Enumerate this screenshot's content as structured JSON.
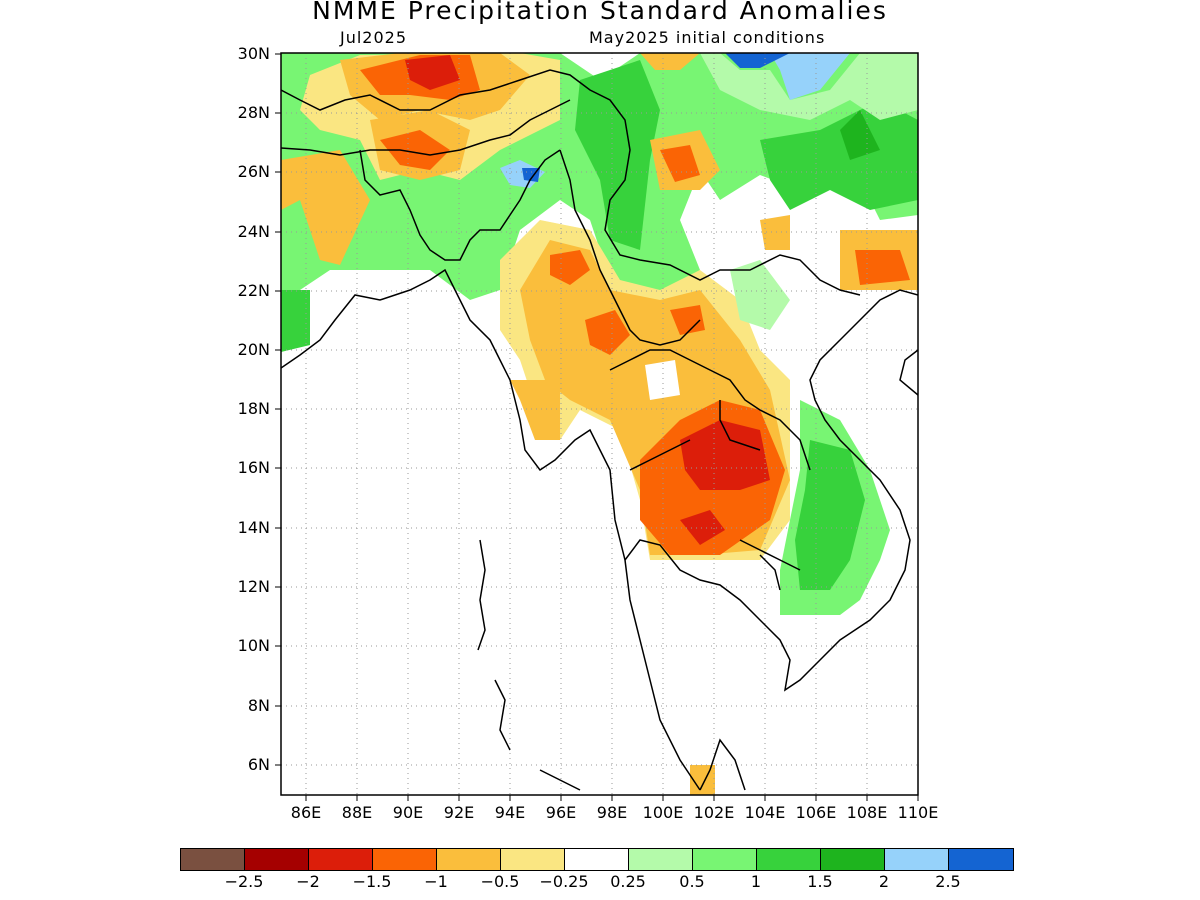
{
  "header": {
    "title": "NMME Precipitation Standard Anomalies",
    "month": "Jul2025",
    "initial": "May2025 initial conditions"
  },
  "axes": {
    "lat_labels": [
      "30N",
      "28N",
      "26N",
      "24N",
      "22N",
      "20N",
      "18N",
      "16N",
      "14N",
      "12N",
      "10N",
      "8N",
      "6N"
    ],
    "lon_labels": [
      "86E",
      "88E",
      "90E",
      "92E",
      "94E",
      "96E",
      "98E",
      "100E",
      "102E",
      "104E",
      "106E",
      "108E",
      "110E"
    ],
    "lat_range": [
      5,
      30
    ],
    "lon_range": [
      85,
      110
    ]
  },
  "colorbar": {
    "colors": [
      "#7a5040",
      "#a50000",
      "#dc1e0a",
      "#fa6405",
      "#fabe3c",
      "#fae682",
      "#ffffff",
      "#b4faaa",
      "#78f573",
      "#37d23c",
      "#1eb41e",
      "#96d2fa",
      "#1464d2"
    ],
    "labels": [
      "-2.5",
      "-2",
      "-1.5",
      "-1",
      "-0.5",
      "-0.25",
      "0.25",
      "0.5",
      "1",
      "1.5",
      "2",
      "2.5"
    ]
  },
  "colors": {
    "brown": "#7a5040",
    "dark_red": "#a50000",
    "red": "#dc1e0a",
    "orange": "#fa6405",
    "light_orange": "#fabe3c",
    "yellow": "#fae682",
    "white": "#ffffff",
    "pale_green": "#b4faaa",
    "light_green": "#78f573",
    "green": "#37d23c",
    "dark_green": "#1eb41e",
    "light_blue": "#96d2fa",
    "blue": "#1464d2"
  }
}
